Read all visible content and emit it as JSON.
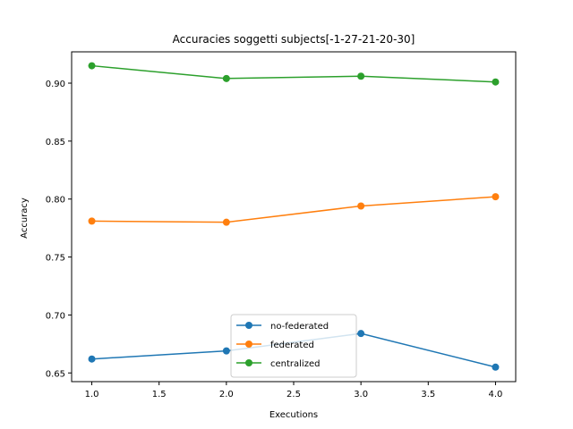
{
  "chart_data": {
    "type": "line",
    "title": "Accuracies soggetti subjects[-1-27-21-20-30]",
    "xlabel": "Executions",
    "ylabel": "Accuracy",
    "x": [
      1,
      2,
      3,
      4
    ],
    "xlim": [
      0.85,
      4.15
    ],
    "ylim": [
      0.6425,
      0.927
    ],
    "xticks": [
      1.0,
      1.5,
      2.0,
      2.5,
      3.0,
      3.5,
      4.0
    ],
    "xtick_labels": [
      "1.0",
      "1.5",
      "2.0",
      "2.5",
      "3.0",
      "3.5",
      "4.0"
    ],
    "yticks": [
      0.65,
      0.7,
      0.75,
      0.8,
      0.85,
      0.9
    ],
    "ytick_labels": [
      "0.65",
      "0.70",
      "0.75",
      "0.80",
      "0.85",
      "0.90"
    ],
    "grid": false,
    "legend_position": "lower center",
    "series": [
      {
        "name": "no-federated",
        "color": "#1f77b4",
        "values": [
          0.662,
          0.669,
          0.684,
          0.655
        ]
      },
      {
        "name": "federated",
        "color": "#ff7f0e",
        "values": [
          0.781,
          0.78,
          0.794,
          0.802
        ]
      },
      {
        "name": "centralized",
        "color": "#2ca02c",
        "values": [
          0.915,
          0.904,
          0.906,
          0.901
        ]
      }
    ]
  }
}
